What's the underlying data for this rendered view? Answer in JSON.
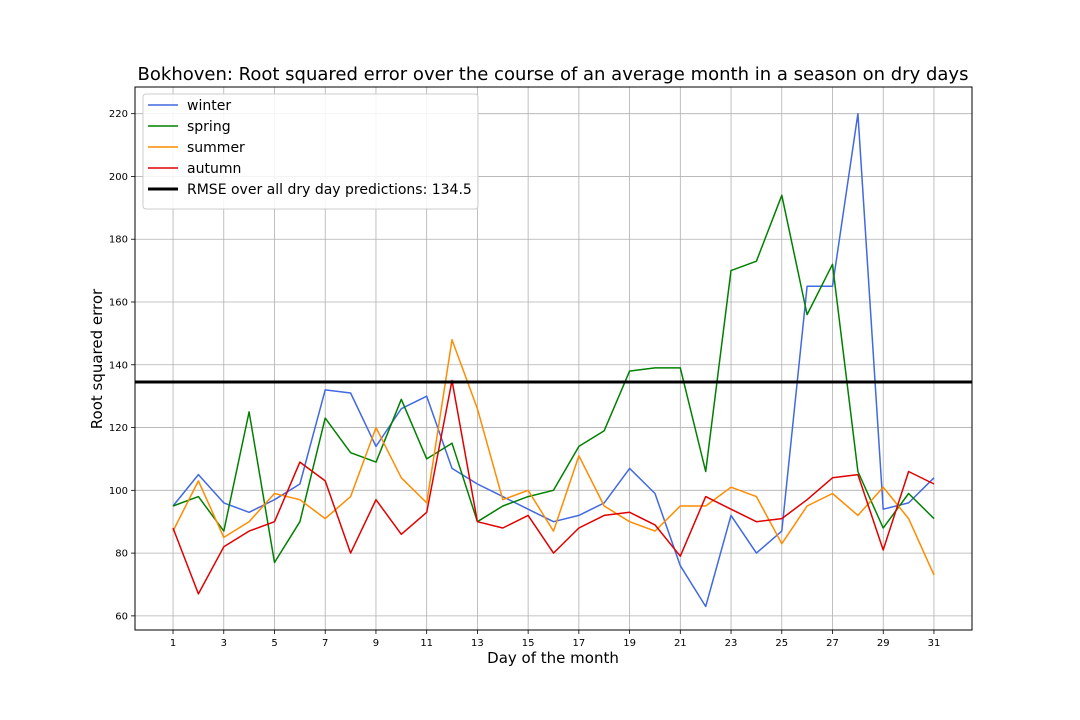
{
  "chart_data": {
    "type": "line",
    "title": "Bokhoven: Root squared error over the course of an average month in a season on dry days",
    "xlabel": "Day of the month",
    "ylabel": "Root squared error",
    "x": [
      1,
      2,
      3,
      4,
      5,
      6,
      7,
      8,
      9,
      10,
      11,
      12,
      13,
      14,
      15,
      16,
      17,
      18,
      19,
      20,
      21,
      22,
      23,
      24,
      25,
      26,
      27,
      28,
      29,
      30,
      31
    ],
    "xticks": [
      1,
      3,
      5,
      7,
      9,
      11,
      13,
      15,
      17,
      19,
      21,
      23,
      25,
      27,
      29,
      31
    ],
    "yticks": [
      60,
      80,
      100,
      120,
      140,
      160,
      180,
      200,
      220
    ],
    "xlim": [
      -0.5,
      32.5
    ],
    "ylim": [
      55.5,
      228.5
    ],
    "grid": true,
    "legend_position": "top-left",
    "series": [
      {
        "name": "winter",
        "color": "#4169e1",
        "values": [
          95,
          105,
          96,
          93,
          97,
          102,
          132,
          131,
          114,
          126,
          130,
          107,
          102,
          98,
          94,
          90,
          92,
          96,
          107,
          99,
          76,
          63,
          92,
          80,
          87,
          165,
          165,
          220,
          94,
          96,
          104
        ]
      },
      {
        "name": "spring",
        "color": "#008000",
        "values": [
          95,
          98,
          87,
          125,
          77,
          90,
          123,
          112,
          109,
          129,
          110,
          115,
          90,
          95,
          98,
          100,
          114,
          119,
          138,
          139,
          139,
          106,
          170,
          173,
          194,
          156,
          172,
          106,
          88,
          99,
          91
        ]
      },
      {
        "name": "summer",
        "color": "#ff8c00",
        "values": [
          87,
          103,
          85,
          90,
          99,
          97,
          91,
          98,
          120,
          104,
          96,
          148,
          126,
          97,
          100,
          87,
          111,
          95,
          90,
          87,
          95,
          95,
          101,
          98,
          83,
          95,
          99,
          92,
          101,
          91,
          73
        ]
      },
      {
        "name": "autumn",
        "color": "#e00000",
        "values": [
          88,
          67,
          82,
          87,
          90,
          109,
          103,
          80,
          97,
          86,
          93,
          135,
          90,
          88,
          92,
          80,
          88,
          92,
          93,
          89,
          79,
          98,
          94,
          90,
          91,
          97,
          104,
          105,
          81,
          106,
          102
        ]
      }
    ],
    "reference_line": {
      "label": "RMSE over all dry day predictions: 134.5",
      "value": 134.5,
      "color": "#000000"
    }
  }
}
